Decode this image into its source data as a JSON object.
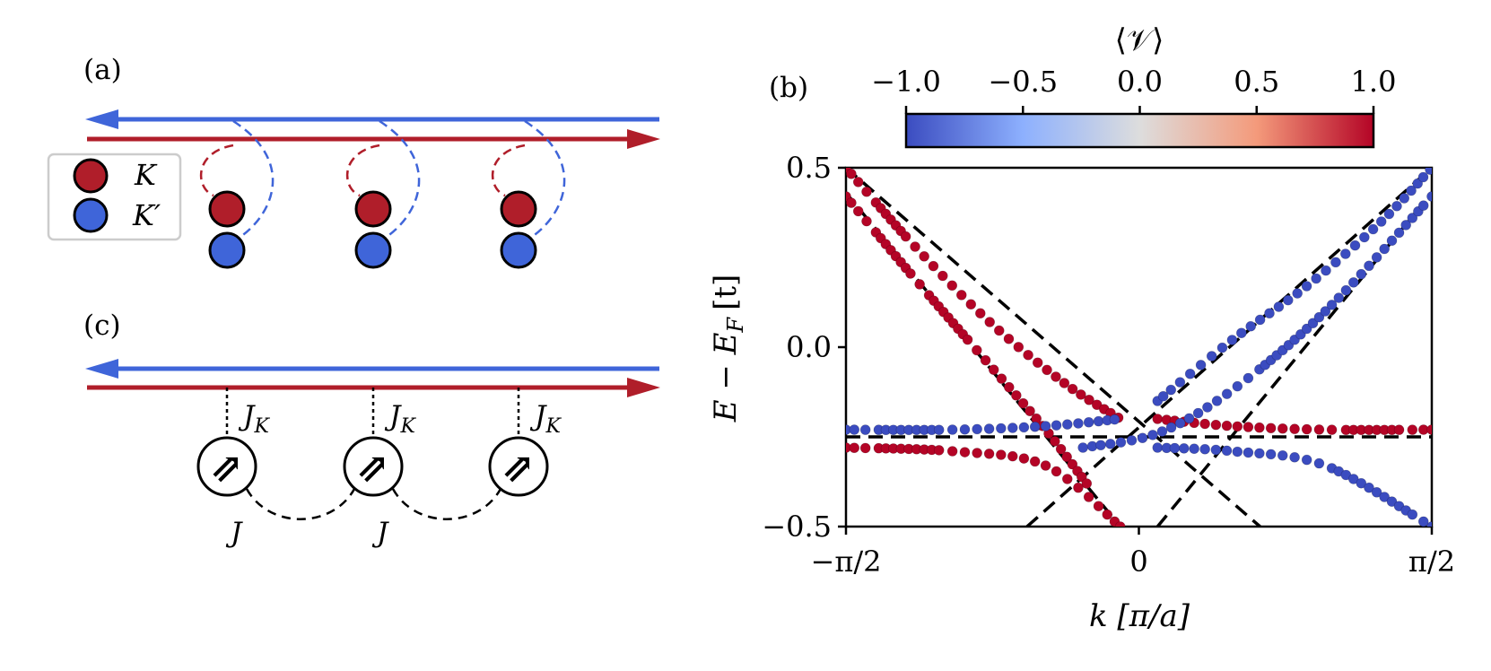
{
  "panel_a": {
    "label": "(a)",
    "legend": [
      {
        "name": "K",
        "color": "#b01e2a"
      },
      {
        "name": "K′",
        "color": "#3f65d9"
      }
    ],
    "site_count": 3
  },
  "panel_c": {
    "label": "(c)",
    "kondo_labels": [
      "J",
      "J",
      "J"
    ],
    "kondo_sub": "K",
    "exchange_labels": [
      "J",
      "J"
    ],
    "spin_glyph": "⇗"
  },
  "panel_b": {
    "label": "(b)",
    "colorbar": {
      "title": "⟨𝒱⟩",
      "ticks": [
        "−1.0",
        "−0.5",
        "0.0",
        "0.5",
        "1.0"
      ],
      "values": [
        -1.0,
        -0.5,
        0.0,
        0.5,
        1.0
      ],
      "low_color": "#3b4cc0",
      "mid_color": "#dddddd",
      "high_color": "#b40426"
    },
    "xlabel": "k [π/a]",
    "ylabel": "E − E",
    "ylabel_sub": "F",
    "ylabel_unit": "[t]",
    "xticks": [
      "−π/2",
      "0",
      "π/2"
    ],
    "yticks": [
      "0.5",
      "0.0",
      "−0.5"
    ]
  },
  "chart_data": {
    "type": "scatter",
    "xlim": [
      -1.5708,
      1.5708
    ],
    "ylim": [
      -0.5,
      0.5
    ],
    "colorscale": "coolwarm",
    "hybridized_bands": {
      "description_free": "each band shown as dotted curves coloured by valley polarization",
      "series": [
        {
          "color_value": 1.0,
          "x": [
            -1.5708,
            -1.2,
            -0.8,
            -0.4,
            -0.1
          ],
          "y": [
            0.5,
            0.28,
            0.07,
            -0.1,
            -0.2
          ]
        },
        {
          "color_value": 1.0,
          "x": [
            -1.5708,
            -1.2,
            -0.8,
            -0.5,
            -0.28
          ],
          "y": [
            0.42,
            0.19,
            -0.05,
            -0.23,
            -0.38
          ]
        },
        {
          "color_value": 1.0,
          "x": [
            0.1,
            0.5,
            1.0,
            1.5708
          ],
          "y": [
            -0.2,
            -0.22,
            -0.23,
            -0.23
          ]
        },
        {
          "color_value": 1.0,
          "x": [
            -1.5708,
            -1.0,
            -0.5,
            -0.1
          ],
          "y": [
            -0.28,
            -0.29,
            -0.33,
            -0.5
          ]
        },
        {
          "color_value": -1.0,
          "x": [
            -1.5708,
            -1.0,
            -0.5,
            -0.1
          ],
          "y": [
            -0.23,
            -0.23,
            -0.22,
            -0.2
          ]
        },
        {
          "color_value": -1.0,
          "x": [
            0.1,
            0.5,
            1.0,
            1.5708
          ],
          "y": [
            -0.28,
            -0.29,
            -0.33,
            -0.5
          ]
        },
        {
          "color_value": -1.0,
          "x": [
            0.1,
            0.5,
            0.9,
            1.3,
            1.5708
          ],
          "y": [
            -0.15,
            0.02,
            0.17,
            0.35,
            0.5
          ]
        },
        {
          "color_value": -1.0,
          "x": [
            -0.3,
            0.1,
            0.5,
            1.0,
            1.5708
          ],
          "y": [
            -0.28,
            -0.24,
            -0.12,
            0.1,
            0.42
          ]
        }
      ]
    },
    "bare_bands_dashed": [
      {
        "x": [
          -1.5708,
          0.65
        ],
        "y": [
          0.5,
          -0.5
        ]
      },
      {
        "x": [
          -1.5708,
          -0.1
        ],
        "y": [
          0.43,
          -0.5
        ]
      },
      {
        "x": [
          -0.6,
          1.5708
        ],
        "y": [
          -0.5,
          0.5
        ]
      },
      {
        "x": [
          0.1,
          1.5708
        ],
        "y": [
          -0.5,
          0.43
        ]
      },
      {
        "x": [
          -1.5708,
          1.5708
        ],
        "y": [
          -0.25,
          -0.25
        ]
      }
    ]
  }
}
